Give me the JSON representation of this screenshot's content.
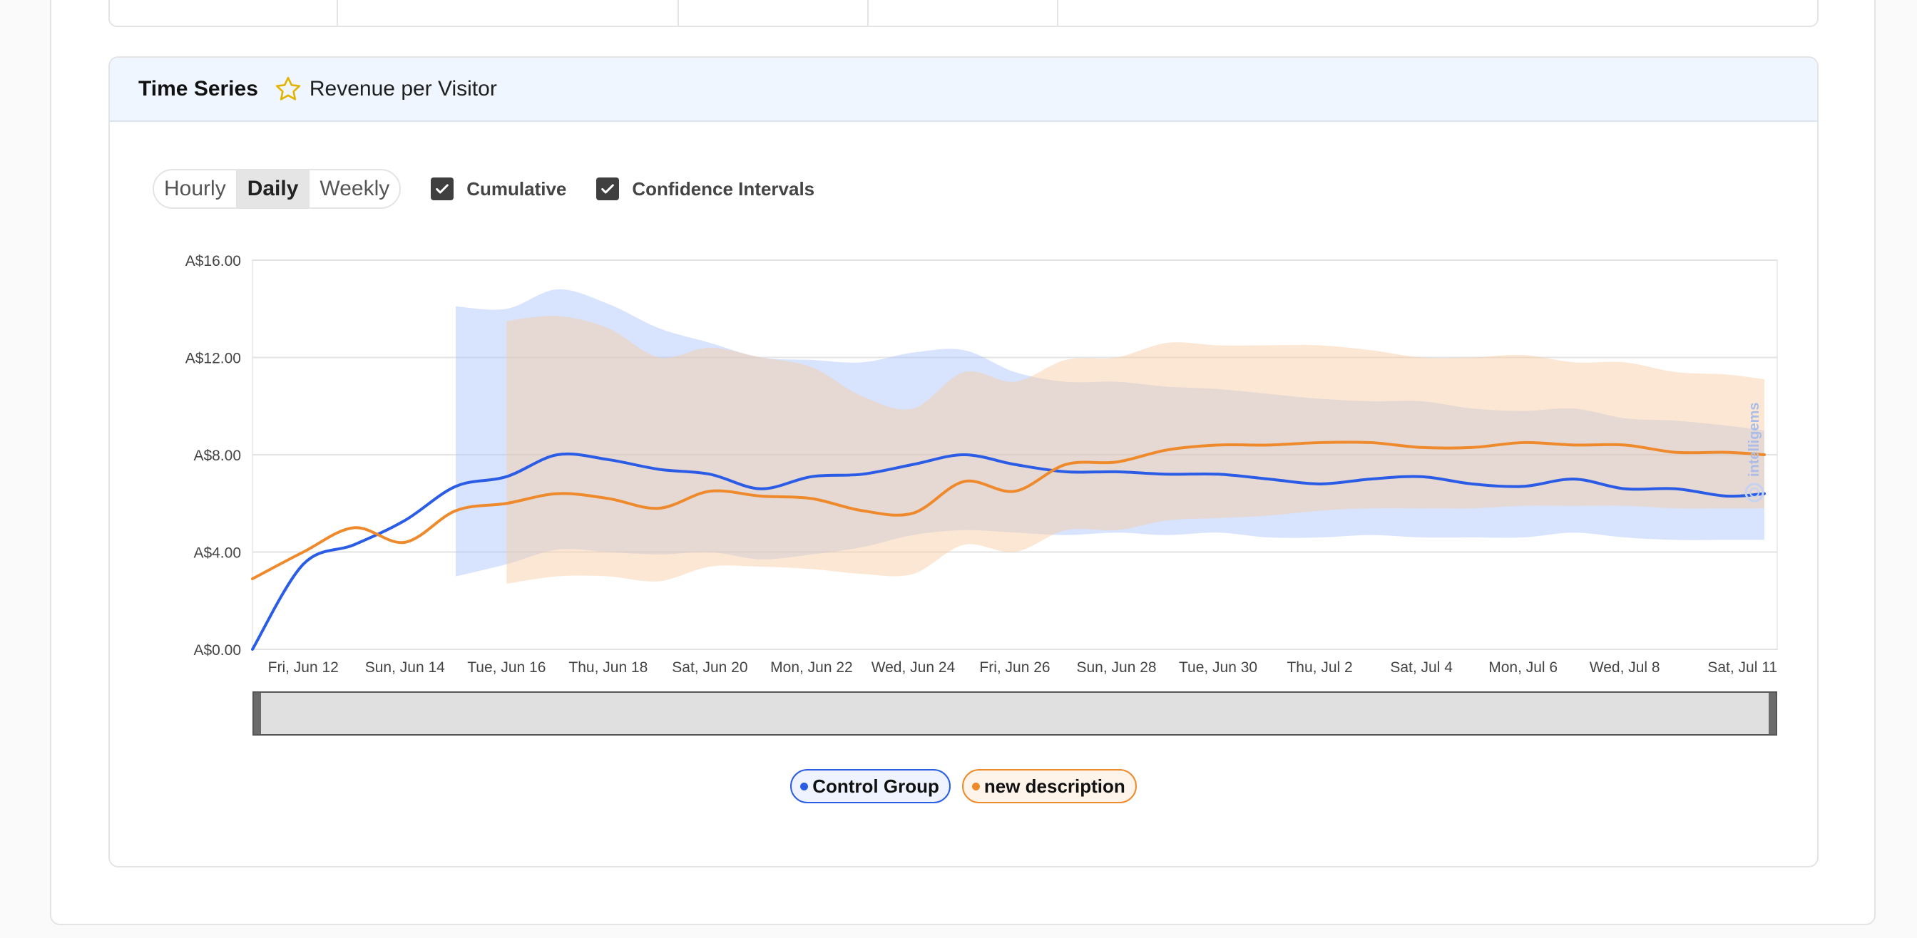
{
  "panel": {
    "title": "Time Series",
    "metric": "Revenue per Visitor",
    "star_color": "#e0b400"
  },
  "controls": {
    "granularity": [
      {
        "label": "Hourly",
        "active": false
      },
      {
        "label": "Daily",
        "active": true
      },
      {
        "label": "Weekly",
        "active": false
      }
    ],
    "cumulative": {
      "label": "Cumulative",
      "checked": true
    },
    "confidence": {
      "label": "Confidence Intervals",
      "checked": true
    }
  },
  "watermark": "intelligems",
  "chart_data": {
    "type": "line",
    "y_ticks": [
      "A$16.00",
      "A$12.00",
      "A$8.00",
      "A$4.00",
      "A$0.00"
    ],
    "ylim": [
      0,
      16
    ],
    "x_labels": [
      "Fri, Jun 12",
      "Sun, Jun 14",
      "Tue, Jun 16",
      "Thu, Jun 18",
      "Sat, Jun 20",
      "Mon, Jun 22",
      "Wed, Jun 24",
      "Fri, Jun 26",
      "Sun, Jun 28",
      "Tue, Jun 30",
      "Thu, Jul 2",
      "Sat, Jul 4",
      "Mon, Jul 6",
      "Wed, Jul 8",
      "Sat, Jul 11"
    ],
    "x_label_days": [
      1,
      3,
      5,
      7,
      9,
      11,
      13,
      15,
      17,
      19,
      21,
      23,
      25,
      27,
      30
    ],
    "x_dates": [
      "Jun 11",
      "Jun 12",
      "Jun 13",
      "Jun 14",
      "Jun 15",
      "Jun 16",
      "Jun 17",
      "Jun 18",
      "Jun 19",
      "Jun 20",
      "Jun 21",
      "Jun 22",
      "Jun 23",
      "Jun 24",
      "Jun 25",
      "Jun 26",
      "Jun 27",
      "Jun 28",
      "Jun 29",
      "Jun 30",
      "Jul 1",
      "Jul 2",
      "Jul 3",
      "Jul 4",
      "Jul 5",
      "Jul 6",
      "Jul 7",
      "Jul 8",
      "Jul 9",
      "Jul 10",
      "Jul 11"
    ],
    "series": [
      {
        "name": "Control Group",
        "color": "#2b5ce6",
        "band_color": "#a9c0fa",
        "values": [
          0.0,
          3.5,
          4.3,
          5.3,
          6.7,
          7.1,
          8.0,
          7.8,
          7.4,
          7.2,
          6.6,
          7.1,
          7.2,
          7.6,
          8.0,
          7.6,
          7.3,
          7.3,
          7.2,
          7.2,
          7.0,
          6.8,
          7.0,
          7.1,
          6.8,
          6.7,
          7.0,
          6.6,
          6.6,
          6.3,
          6.4
        ],
        "ci_start_index": 4,
        "upper": [
          null,
          null,
          null,
          null,
          14.1,
          14.0,
          14.8,
          14.2,
          13.2,
          12.6,
          12.0,
          11.9,
          11.8,
          12.2,
          12.3,
          11.4,
          11.0,
          11.0,
          10.8,
          10.7,
          10.5,
          10.3,
          10.2,
          10.2,
          9.9,
          9.8,
          9.9,
          9.5,
          9.4,
          9.2,
          9.0
        ],
        "lower": [
          null,
          null,
          null,
          null,
          3.0,
          3.5,
          4.1,
          4.0,
          3.9,
          4.0,
          3.7,
          3.9,
          4.2,
          4.7,
          4.9,
          4.8,
          4.7,
          4.8,
          4.7,
          4.8,
          4.6,
          4.6,
          4.7,
          4.6,
          4.6,
          4.6,
          4.8,
          4.6,
          4.5,
          4.5,
          4.5
        ]
      },
      {
        "name": "new description",
        "color": "#ee8a2c",
        "band_color": "#f9caa0",
        "values": [
          2.9,
          4.0,
          5.0,
          4.4,
          5.7,
          6.0,
          6.4,
          6.2,
          5.8,
          6.5,
          6.3,
          6.2,
          5.7,
          5.6,
          6.9,
          6.5,
          7.6,
          7.7,
          8.2,
          8.4,
          8.4,
          8.5,
          8.5,
          8.3,
          8.3,
          8.5,
          8.4,
          8.4,
          8.1,
          8.1,
          8.0
        ],
        "ci_start_index": 5,
        "upper": [
          null,
          null,
          null,
          null,
          null,
          13.5,
          13.7,
          13.2,
          12.0,
          12.4,
          12.0,
          11.6,
          10.4,
          9.9,
          11.4,
          11.0,
          11.9,
          12.0,
          12.6,
          12.5,
          12.5,
          12.5,
          12.3,
          12.0,
          12.0,
          12.1,
          11.8,
          11.8,
          11.4,
          11.3,
          11.1
        ],
        "lower": [
          null,
          null,
          null,
          null,
          null,
          2.7,
          3.0,
          3.0,
          2.8,
          3.4,
          3.4,
          3.3,
          3.1,
          3.1,
          4.3,
          4.0,
          4.9,
          4.9,
          5.3,
          5.4,
          5.5,
          5.7,
          5.8,
          5.8,
          5.8,
          5.9,
          5.9,
          5.9,
          5.8,
          5.8,
          5.8
        ]
      }
    ],
    "grid": true,
    "legend_position": "bottom-center"
  }
}
